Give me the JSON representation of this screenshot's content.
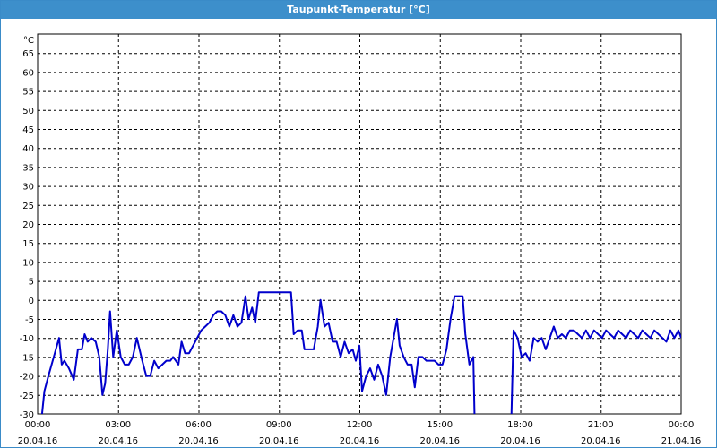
{
  "window": {
    "title": "Taupunkt-Temperatur [°C]"
  },
  "chart_data": {
    "type": "line",
    "title": "Taupunkt-Temperatur [°C]",
    "yunit": "°C",
    "ylim": [
      -30,
      70
    ],
    "yticks": [
      -30,
      -25,
      -20,
      -15,
      -10,
      -5,
      0,
      5,
      10,
      15,
      20,
      25,
      30,
      35,
      40,
      45,
      50,
      55,
      60,
      65
    ],
    "xlim": [
      "2016-04-20 00:00",
      "2016-04-21 00:00"
    ],
    "xticks": [
      {
        "time": "00:00",
        "date": "20.04.16"
      },
      {
        "time": "03:00",
        "date": "20.04.16"
      },
      {
        "time": "06:00",
        "date": "20.04.16"
      },
      {
        "time": "09:00",
        "date": "20.04.16"
      },
      {
        "time": "12:00",
        "date": "20.04.16"
      },
      {
        "time": "15:00",
        "date": "20.04.16"
      },
      {
        "time": "18:00",
        "date": "20.04.16"
      },
      {
        "time": "21:00",
        "date": "20.04.16"
      },
      {
        "time": "00:00",
        "date": "21.04.16"
      }
    ],
    "grid": true,
    "colors": {
      "line": "#0000cc",
      "grid": "#000000",
      "titlebar": "#3d8fcb"
    },
    "series": [
      {
        "segments": [
          [
            [
              "00:09",
              -31
            ],
            [
              "00:15",
              -24
            ],
            [
              "00:24",
              -20
            ],
            [
              "00:36",
              -15
            ],
            [
              "00:48",
              -10
            ],
            [
              "00:54",
              -17
            ],
            [
              "01:00",
              -16
            ],
            [
              "01:10",
              -18
            ],
            [
              "01:21",
              -21
            ],
            [
              "01:30",
              -13
            ],
            [
              "01:39",
              -13
            ],
            [
              "01:45",
              -9
            ],
            [
              "01:52",
              -11
            ],
            [
              "02:00",
              -10
            ],
            [
              "02:10",
              -11
            ],
            [
              "02:18",
              -15
            ],
            [
              "02:25",
              -25
            ],
            [
              "02:31",
              -22
            ],
            [
              "02:37",
              -13
            ],
            [
              "02:42",
              -3
            ],
            [
              "02:49",
              -15
            ],
            [
              "02:57",
              -8
            ],
            [
              "03:06",
              -15
            ],
            [
              "03:15",
              -17
            ],
            [
              "03:24",
              -17
            ],
            [
              "03:33",
              -15
            ],
            [
              "03:42",
              -10
            ],
            [
              "03:54",
              -16
            ],
            [
              "04:03",
              -20
            ],
            [
              "04:12",
              -20
            ],
            [
              "04:21",
              -16
            ],
            [
              "04:30",
              -18
            ],
            [
              "04:39",
              -17
            ],
            [
              "04:48",
              -16
            ],
            [
              "04:57",
              -16
            ],
            [
              "05:03",
              -15
            ],
            [
              "05:09",
              -16
            ],
            [
              "05:15",
              -17
            ],
            [
              "05:22",
              -11
            ],
            [
              "05:30",
              -14
            ],
            [
              "05:39",
              -14
            ],
            [
              "05:48",
              -12
            ],
            [
              "05:57",
              -10
            ],
            [
              "06:06",
              -8
            ],
            [
              "06:15",
              -7
            ],
            [
              "06:24",
              -6
            ],
            [
              "06:33",
              -4
            ],
            [
              "06:42",
              -3
            ],
            [
              "06:51",
              -3
            ],
            [
              "07:00",
              -4
            ],
            [
              "07:09",
              -7
            ],
            [
              "07:18",
              -4
            ],
            [
              "07:27",
              -7
            ],
            [
              "07:36",
              -6
            ],
            [
              "07:45",
              1
            ],
            [
              "07:52",
              -5
            ],
            [
              "08:00",
              -2
            ],
            [
              "08:07",
              -6
            ],
            [
              "08:15",
              2
            ],
            [
              "08:24",
              2
            ],
            [
              "08:33",
              2
            ],
            [
              "08:42",
              2
            ],
            [
              "08:51",
              2
            ],
            [
              "09:00",
              2
            ],
            [
              "09:09",
              2
            ],
            [
              "09:18",
              2
            ],
            [
              "09:27",
              2
            ],
            [
              "09:33",
              -9
            ],
            [
              "09:42",
              -8
            ],
            [
              "09:51",
              -8
            ],
            [
              "09:57",
              -13
            ],
            [
              "10:06",
              -13
            ],
            [
              "10:18",
              -13
            ],
            [
              "10:27",
              -7
            ],
            [
              "10:33",
              0
            ],
            [
              "10:42",
              -7
            ],
            [
              "10:51",
              -6
            ],
            [
              "11:00",
              -11
            ],
            [
              "11:09",
              -11
            ],
            [
              "11:18",
              -15
            ],
            [
              "11:27",
              -11
            ],
            [
              "11:36",
              -14
            ],
            [
              "11:45",
              -13
            ],
            [
              "11:52",
              -16
            ],
            [
              "12:00",
              -12
            ],
            [
              "12:06",
              -24
            ],
            [
              "12:15",
              -20
            ],
            [
              "12:24",
              -18
            ],
            [
              "12:33",
              -21
            ],
            [
              "12:42",
              -17
            ],
            [
              "12:51",
              -20
            ],
            [
              "13:00",
              -25
            ],
            [
              "13:09",
              -15
            ],
            [
              "13:18",
              -9
            ],
            [
              "13:24",
              -5
            ],
            [
              "13:30",
              -12
            ],
            [
              "13:39",
              -15
            ],
            [
              "13:48",
              -17
            ],
            [
              "13:57",
              -17
            ],
            [
              "14:04",
              -23
            ],
            [
              "14:12",
              -15
            ],
            [
              "14:21",
              -15
            ],
            [
              "14:30",
              -16
            ],
            [
              "14:39",
              -16
            ],
            [
              "14:48",
              -16
            ],
            [
              "14:57",
              -17
            ],
            [
              "15:06",
              -17
            ],
            [
              "15:15",
              -13
            ],
            [
              "15:24",
              -5
            ],
            [
              "15:33",
              1
            ],
            [
              "15:42",
              1
            ],
            [
              "15:51",
              1
            ],
            [
              "15:57",
              -9
            ],
            [
              "16:06",
              -17
            ],
            [
              "16:15",
              -15
            ],
            [
              "16:18",
              -32
            ]
          ],
          [
            [
              "17:40",
              -32
            ],
            [
              "17:45",
              -8
            ],
            [
              "17:54",
              -10
            ],
            [
              "18:03",
              -15
            ],
            [
              "18:12",
              -14
            ],
            [
              "18:21",
              -16
            ],
            [
              "18:30",
              -10
            ],
            [
              "18:39",
              -11
            ],
            [
              "18:48",
              -10
            ],
            [
              "18:57",
              -13
            ],
            [
              "19:06",
              -10
            ],
            [
              "19:15",
              -7
            ],
            [
              "19:24",
              -10
            ],
            [
              "19:33",
              -9
            ],
            [
              "19:42",
              -10
            ],
            [
              "19:51",
              -8
            ],
            [
              "20:00",
              -8
            ],
            [
              "20:09",
              -9
            ],
            [
              "20:18",
              -10
            ],
            [
              "20:27",
              -8
            ],
            [
              "20:36",
              -10
            ],
            [
              "20:45",
              -8
            ],
            [
              "20:54",
              -9
            ],
            [
              "21:03",
              -10
            ],
            [
              "21:12",
              -8
            ],
            [
              "21:21",
              -9
            ],
            [
              "21:30",
              -10
            ],
            [
              "21:39",
              -8
            ],
            [
              "21:48",
              -9
            ],
            [
              "21:57",
              -10
            ],
            [
              "22:06",
              -8
            ],
            [
              "22:15",
              -9
            ],
            [
              "22:24",
              -10
            ],
            [
              "22:33",
              -8
            ],
            [
              "22:42",
              -9
            ],
            [
              "22:51",
              -10
            ],
            [
              "23:00",
              -8
            ],
            [
              "23:09",
              -9
            ],
            [
              "23:18",
              -10
            ],
            [
              "23:27",
              -11
            ],
            [
              "23:36",
              -8
            ],
            [
              "23:45",
              -10
            ],
            [
              "23:54",
              -8
            ],
            [
              "24:00",
              -10
            ]
          ]
        ]
      }
    ]
  }
}
